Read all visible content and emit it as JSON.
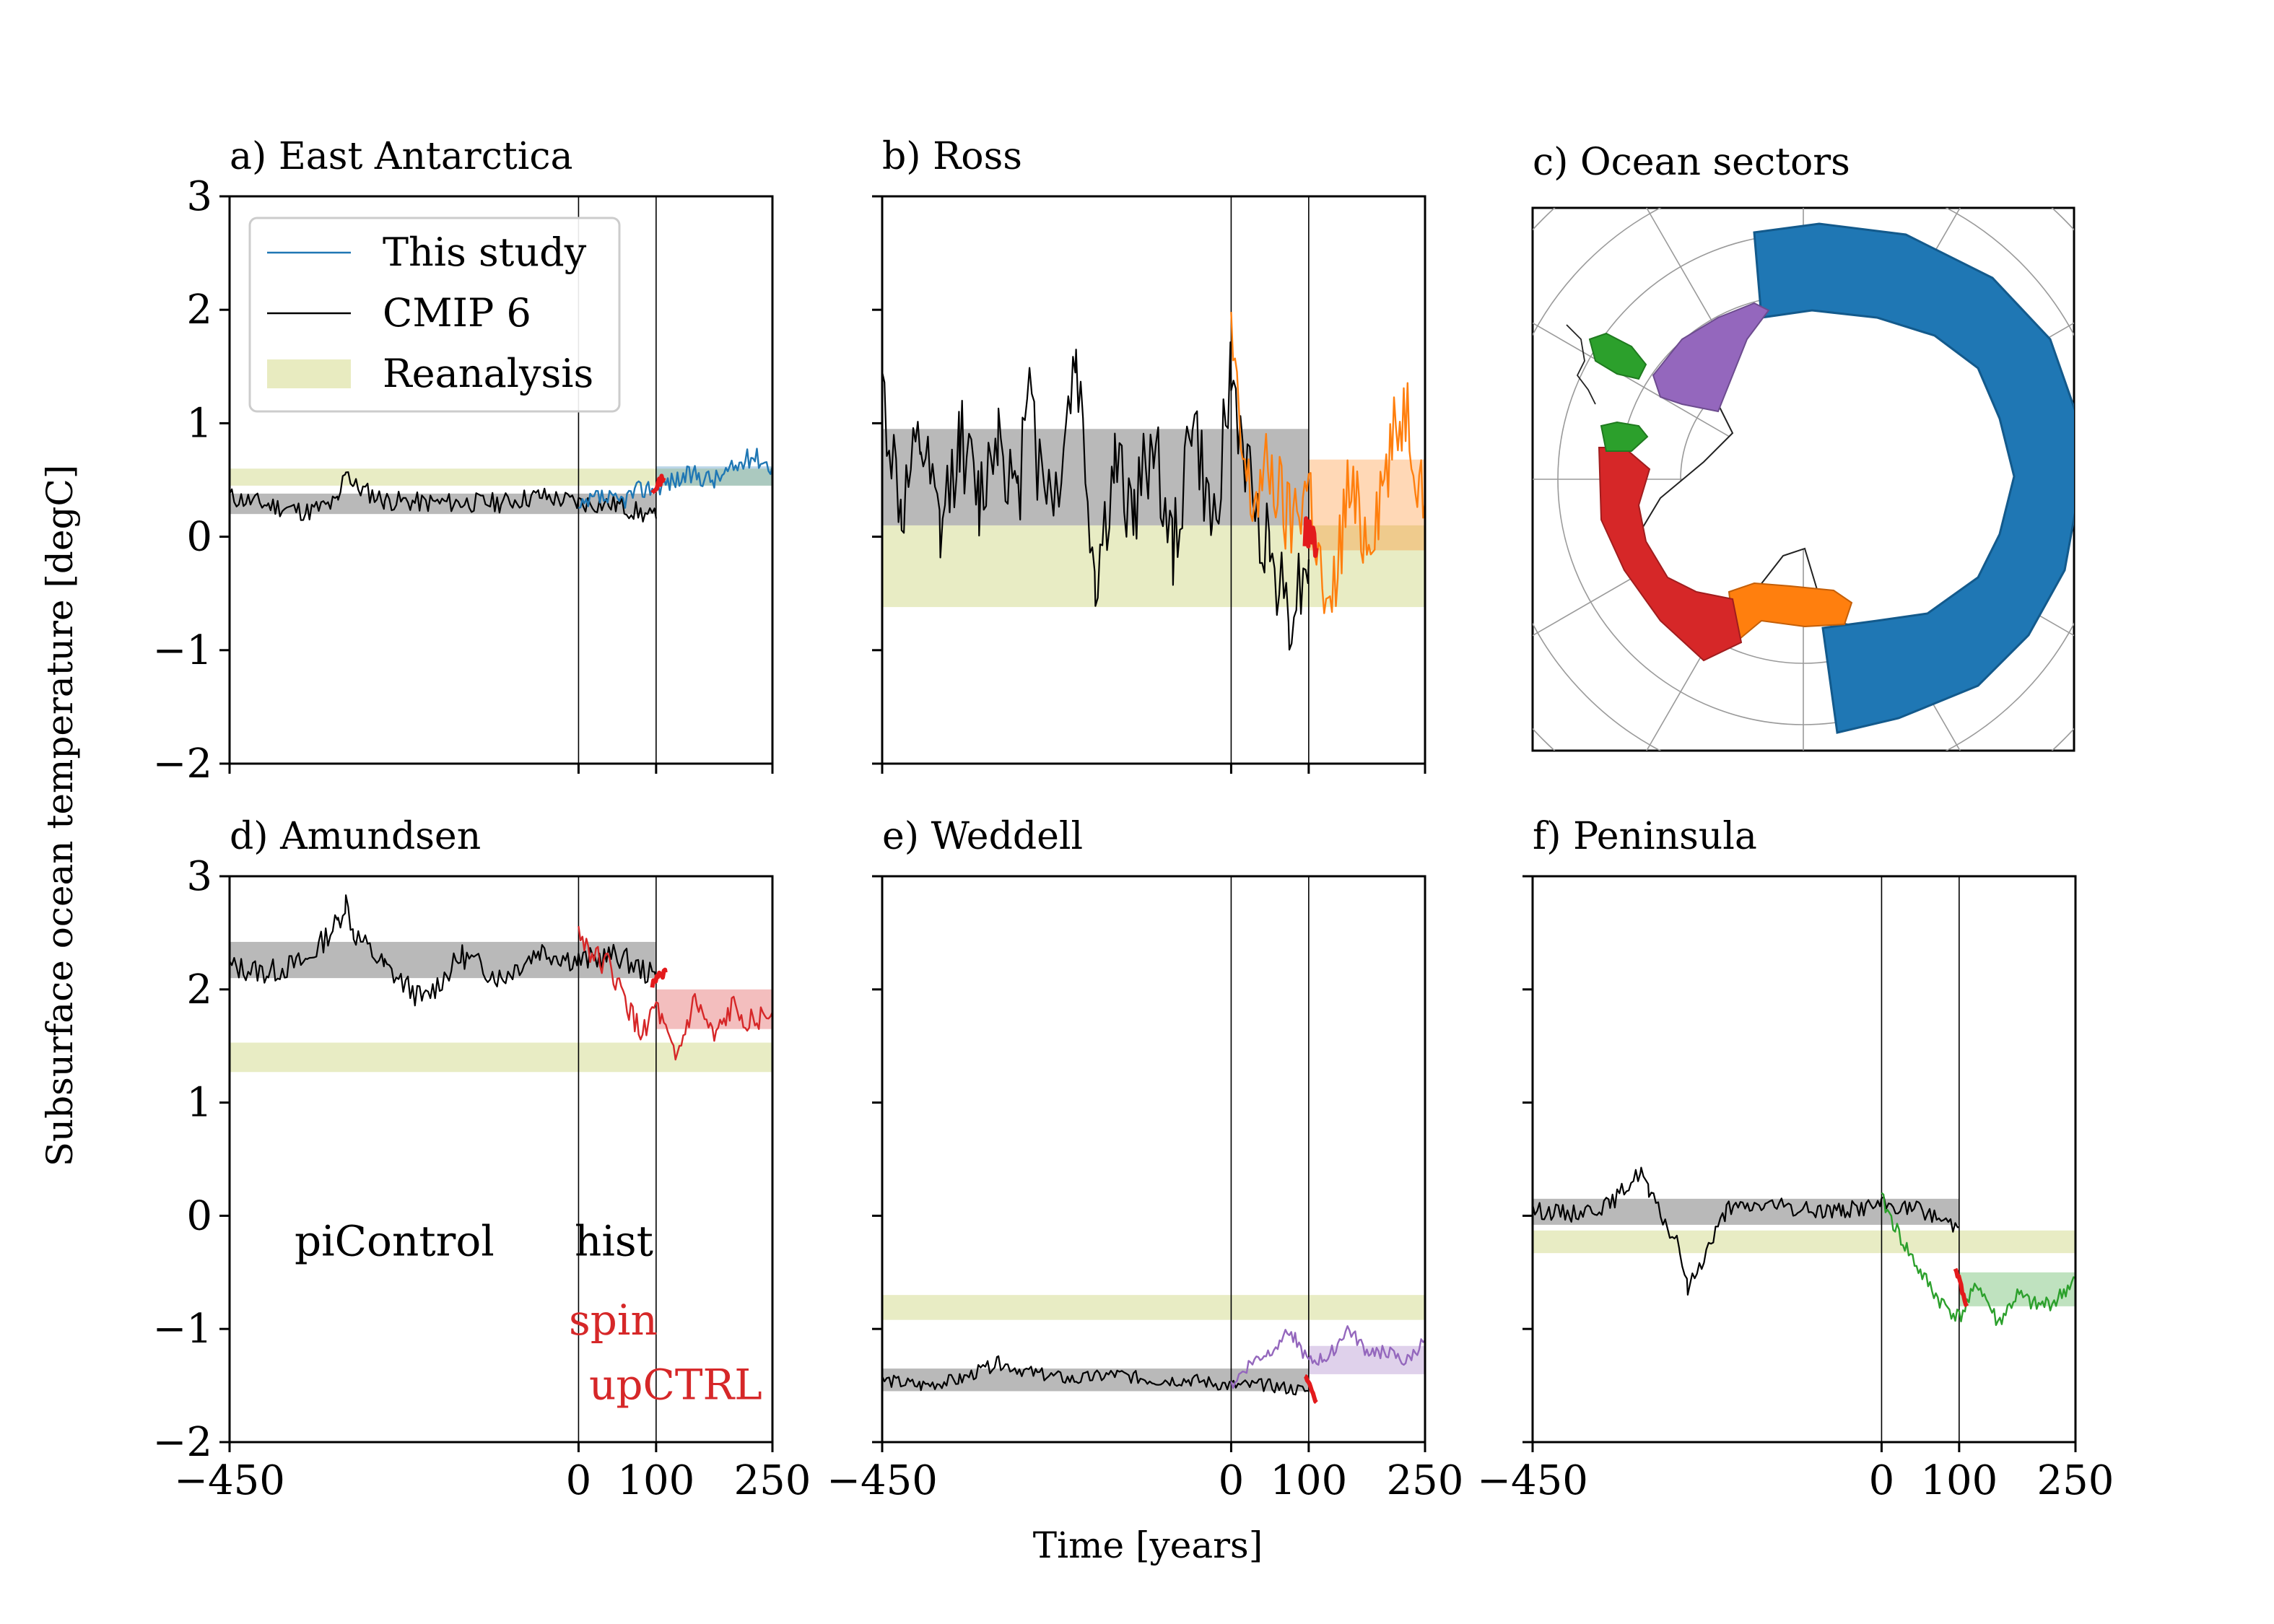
{
  "figure": {
    "ylabel": "Subsurface ocean temperature [degC]",
    "xlabel": "Time [years]"
  },
  "legend": {
    "items": [
      {
        "label": "This study",
        "kind": "line",
        "color": "#1f77b4"
      },
      {
        "label": "CMIP 6",
        "kind": "line",
        "color": "#000000"
      },
      {
        "label": "Reanalysis",
        "kind": "band",
        "color": "#e8ebc0"
      }
    ]
  },
  "annotations": {
    "picontrol": "piControl",
    "hist": "hist",
    "spin": "spin",
    "upctrl": "upCTRL"
  },
  "map": {
    "title": "c) Ocean sectors",
    "sectors": [
      {
        "name": "East Antarctica",
        "color": "#1f77b4"
      },
      {
        "name": "Ross",
        "color": "#ff7f0e"
      },
      {
        "name": "Amundsen",
        "color": "#d62728"
      },
      {
        "name": "Weddell",
        "color": "#9467bd"
      },
      {
        "name": "Peninsula",
        "color": "#2ca02c"
      }
    ]
  },
  "chart_data": [
    {
      "type": "line",
      "title": "a) East Antarctica",
      "xlim": [
        -450,
        250
      ],
      "ylim": [
        -2,
        3
      ],
      "xticks": [
        -450,
        0,
        100,
        250
      ],
      "yticks": [
        -2,
        -1,
        0,
        1,
        2,
        3
      ],
      "vlines": [
        0,
        100
      ],
      "color": "#1f77b4",
      "reanalysis_band": [
        0.45,
        0.6
      ],
      "cmip_band": [
        0.2,
        0.38
      ],
      "study_band": [
        0.45,
        0.62
      ],
      "cmip_series": {
        "x": [
          -450,
          -400,
          -350,
          -310,
          -300,
          -290,
          -250,
          -200,
          -150,
          -100,
          -50,
          0,
          50,
          100
        ],
        "y": [
          0.35,
          0.28,
          0.22,
          0.3,
          0.62,
          0.45,
          0.32,
          0.3,
          0.3,
          0.3,
          0.36,
          0.3,
          0.28,
          0.16
        ]
      },
      "study_series": {
        "x": [
          0,
          25,
          50,
          75,
          100,
          125,
          150,
          175,
          200,
          225,
          250
        ],
        "y": [
          0.22,
          0.35,
          0.3,
          0.4,
          0.45,
          0.5,
          0.55,
          0.5,
          0.6,
          0.72,
          0.62
        ]
      },
      "spinup": {
        "x": [
          95,
          110
        ],
        "y": [
          0.42,
          0.52
        ]
      }
    },
    {
      "type": "line",
      "title": "b) Ross",
      "xlim": [
        -450,
        250
      ],
      "ylim": [
        -2,
        3
      ],
      "xticks": [
        -450,
        0,
        100,
        250
      ],
      "yticks": [
        -2,
        -1,
        0,
        1,
        2,
        3
      ],
      "vlines": [
        0,
        100
      ],
      "color": "#ff7f0e",
      "reanalysis_band": [
        -0.62,
        0.1
      ],
      "cmip_band": [
        0.1,
        0.95
      ],
      "study_band": [
        -0.12,
        0.68
      ],
      "cmip_series": {
        "x": [
          -450,
          -425,
          -400,
          -375,
          -350,
          -325,
          -300,
          -275,
          -260,
          -250,
          -225,
          -200,
          -175,
          -150,
          -125,
          -100,
          -75,
          -50,
          -25,
          0,
          25,
          50,
          75,
          100
        ],
        "y": [
          1.3,
          0.2,
          0.8,
          0.0,
          0.9,
          0.3,
          1.0,
          0.2,
          1.8,
          0.6,
          0.4,
          1.6,
          -0.4,
          0.6,
          0.2,
          0.9,
          -0.2,
          1.1,
          0.0,
          1.4,
          0.4,
          -0.1,
          -0.65,
          -0.2
        ]
      },
      "study_series": {
        "x": [
          0,
          10,
          25,
          50,
          75,
          100,
          125,
          150,
          175,
          200,
          225,
          250
        ],
        "y": [
          1.8,
          0.9,
          0.3,
          0.6,
          0.1,
          0.5,
          -0.85,
          0.4,
          0.0,
          0.6,
          1.2,
          0.3
        ]
      },
      "spinup": {
        "x": [
          95,
          110
        ],
        "y": [
          0.05,
          -0.1
        ]
      }
    },
    {
      "type": "line",
      "title": "d) Amundsen",
      "xlim": [
        -450,
        250
      ],
      "ylim": [
        -2,
        3
      ],
      "xticks": [
        -450,
        0,
        100,
        250
      ],
      "yticks": [
        -2,
        -1,
        0,
        1,
        2,
        3
      ],
      "vlines": [
        0,
        100
      ],
      "color": "#d62728",
      "reanalysis_band": [
        1.27,
        1.53
      ],
      "cmip_band": [
        2.1,
        2.42
      ],
      "study_band": [
        1.65,
        2.0
      ],
      "cmip_series": {
        "x": [
          -450,
          -400,
          -350,
          -310,
          -300,
          -290,
          -250,
          -200,
          -150,
          -100,
          -50,
          0,
          50,
          100
        ],
        "y": [
          2.2,
          2.15,
          2.25,
          2.6,
          2.78,
          2.5,
          2.2,
          1.9,
          2.3,
          2.1,
          2.35,
          2.25,
          2.3,
          2.1
        ]
      },
      "study_series": {
        "x": [
          0,
          20,
          40,
          60,
          80,
          100,
          125,
          150,
          175,
          200,
          225,
          250
        ],
        "y": [
          2.5,
          2.3,
          2.2,
          1.9,
          1.6,
          1.85,
          1.35,
          1.9,
          1.55,
          1.85,
          1.7,
          1.8
        ]
      },
      "spinup": {
        "x": [
          95,
          112
        ],
        "y": [
          2.05,
          2.15
        ]
      }
    },
    {
      "type": "line",
      "title": "e) Weddell",
      "xlim": [
        -450,
        250
      ],
      "ylim": [
        -2,
        3
      ],
      "xticks": [
        -450,
        0,
        100,
        250
      ],
      "yticks": [
        -2,
        -1,
        0,
        1,
        2,
        3
      ],
      "vlines": [
        0,
        100
      ],
      "color": "#9467bd",
      "reanalysis_band": [
        -0.92,
        -0.7
      ],
      "cmip_band": [
        -1.55,
        -1.35
      ],
      "study_band": [
        -1.4,
        -1.15
      ],
      "cmip_series": {
        "x": [
          -450,
          -400,
          -350,
          -300,
          -250,
          -200,
          -150,
          -100,
          -50,
          0,
          50,
          100
        ],
        "y": [
          -1.45,
          -1.5,
          -1.45,
          -1.3,
          -1.4,
          -1.45,
          -1.4,
          -1.45,
          -1.45,
          -1.5,
          -1.5,
          -1.55
        ]
      },
      "study_series": {
        "x": [
          0,
          25,
          50,
          75,
          100,
          125,
          150,
          175,
          200,
          225,
          250
        ],
        "y": [
          -1.5,
          -1.3,
          -1.2,
          -1.0,
          -1.3,
          -1.25,
          -1.0,
          -1.2,
          -1.2,
          -1.3,
          -1.1
        ]
      },
      "spinup": {
        "x": [
          95,
          110
        ],
        "y": [
          -1.4,
          -1.65
        ]
      }
    },
    {
      "type": "line",
      "title": "f) Peninsula",
      "xlim": [
        -450,
        250
      ],
      "ylim": [
        -2,
        3
      ],
      "xticks": [
        -450,
        0,
        100,
        250
      ],
      "yticks": [
        -2,
        -1,
        0,
        1,
        2,
        3
      ],
      "vlines": [
        0,
        100
      ],
      "color": "#2ca02c",
      "reanalysis_band": [
        -0.33,
        -0.13
      ],
      "cmip_band": [
        -0.08,
        0.15
      ],
      "study_band": [
        -0.8,
        -0.5
      ],
      "cmip_series": {
        "x": [
          -450,
          -400,
          -350,
          -310,
          -300,
          -260,
          -250,
          -200,
          -150,
          -100,
          -50,
          0,
          50,
          100
        ],
        "y": [
          0.05,
          0.02,
          0.1,
          0.4,
          0.2,
          -0.3,
          -0.65,
          0.05,
          0.1,
          0.05,
          0.05,
          0.1,
          0.05,
          -0.1
        ]
      },
      "study_series": {
        "x": [
          0,
          25,
          50,
          75,
          100,
          125,
          150,
          175,
          200,
          225,
          250
        ],
        "y": [
          0.15,
          -0.2,
          -0.5,
          -0.75,
          -0.9,
          -0.6,
          -0.95,
          -0.7,
          -0.8,
          -0.75,
          -0.55
        ]
      },
      "spinup": {
        "x": [
          95,
          110
        ],
        "y": [
          -0.45,
          -0.8
        ]
      }
    }
  ]
}
